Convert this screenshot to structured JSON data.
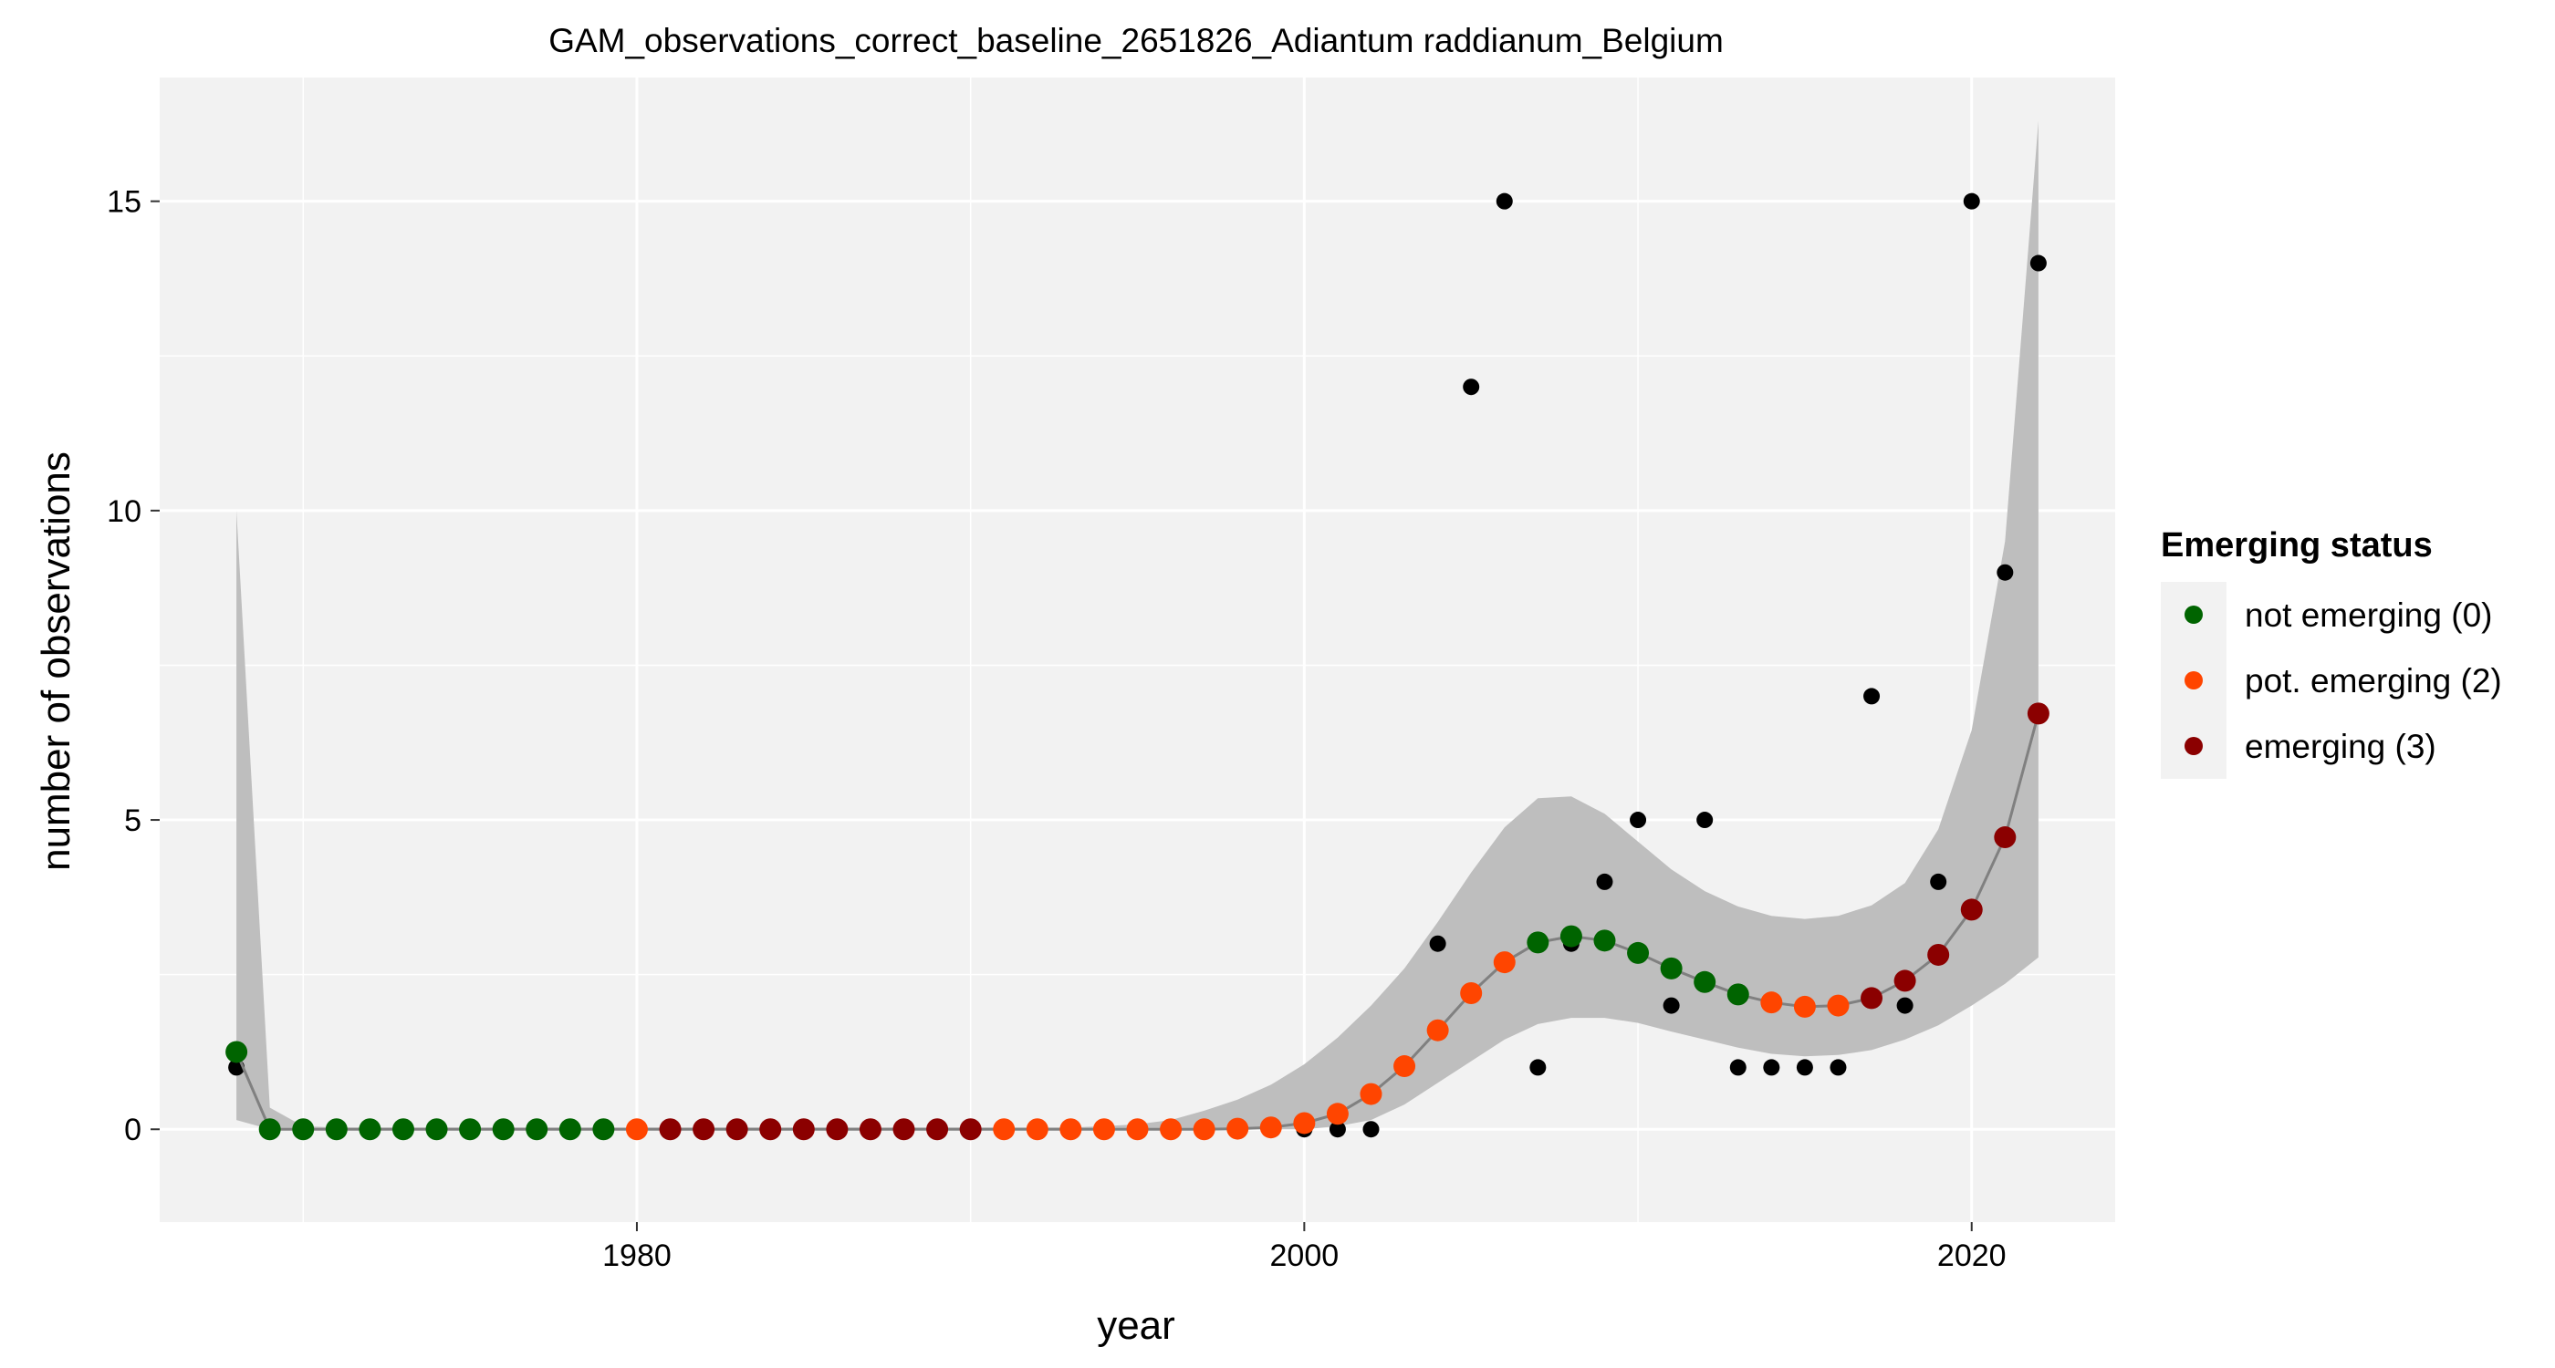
{
  "chart_data": {
    "type": "scatter",
    "title": "GAM_observations_correct_baseline_2651826_Adiantum raddianum_Belgium",
    "xlabel": "year",
    "ylabel": "number of observations",
    "xlim": [
      1965.7,
      2024.3
    ],
    "ylim": [
      -1.5,
      17.0
    ],
    "x_ticks": [
      1980,
      2000,
      2020
    ],
    "y_ticks": [
      0,
      5,
      10,
      15
    ],
    "x_minor_ticks": [
      1970,
      1990,
      2010
    ],
    "y_minor_ticks": [
      2.5,
      7.5,
      12.5
    ],
    "grid": true,
    "legend": {
      "title": "Emerging status",
      "position": "right",
      "entries": [
        {
          "key": "0",
          "label": "not emerging (0)",
          "color": "#006400"
        },
        {
          "key": "2",
          "label": "pot. emerging (2)",
          "color": "#FF4500"
        },
        {
          "key": "3",
          "label": "emerging (3)",
          "color": "#8B0000"
        }
      ]
    },
    "colors": {
      "panel": "#F2F2F2",
      "grid": "#FFFFFF",
      "band": "#BEBEBE",
      "line": "#808080",
      "observed": "#000000"
    },
    "observed": [
      [
        1968,
        1
      ],
      [
        1969,
        0
      ],
      [
        1970,
        0
      ],
      [
        1971,
        0
      ],
      [
        1972,
        0
      ],
      [
        1973,
        0
      ],
      [
        1974,
        0
      ],
      [
        1975,
        0
      ],
      [
        1976,
        0
      ],
      [
        1977,
        0
      ],
      [
        1978,
        0
      ],
      [
        1979,
        0
      ],
      [
        1980,
        0
      ],
      [
        1981,
        0
      ],
      [
        1982,
        0
      ],
      [
        1983,
        0
      ],
      [
        1984,
        0
      ],
      [
        1985,
        0
      ],
      [
        1986,
        0
      ],
      [
        1987,
        0
      ],
      [
        1988,
        0
      ],
      [
        1989,
        0
      ],
      [
        1990,
        0
      ],
      [
        1991,
        0
      ],
      [
        1992,
        0
      ],
      [
        1993,
        0
      ],
      [
        1994,
        0
      ],
      [
        1995,
        0
      ],
      [
        1996,
        0
      ],
      [
        1997,
        0
      ],
      [
        1998,
        0
      ],
      [
        1999,
        0
      ],
      [
        2000,
        0
      ],
      [
        2001,
        0
      ],
      [
        2002,
        0
      ],
      [
        2004,
        3
      ],
      [
        2005,
        12
      ],
      [
        2006,
        15
      ],
      [
        2007,
        1
      ],
      [
        2008,
        3
      ],
      [
        2009,
        4
      ],
      [
        2010,
        5
      ],
      [
        2011,
        2
      ],
      [
        2012,
        5
      ],
      [
        2013,
        1
      ],
      [
        2014,
        1
      ],
      [
        2015,
        1
      ],
      [
        2016,
        1
      ],
      [
        2017,
        7
      ],
      [
        2018,
        2
      ],
      [
        2019,
        4
      ],
      [
        2020,
        15
      ],
      [
        2021,
        9
      ],
      [
        2022,
        14
      ]
    ],
    "fit": {
      "x": [
        1968,
        1969,
        1970,
        1971,
        1972,
        1973,
        1974,
        1975,
        1976,
        1977,
        1978,
        1979,
        1980,
        1981,
        1982,
        1983,
        1984,
        1985,
        1986,
        1987,
        1988,
        1989,
        1990,
        1991,
        1992,
        1993,
        1994,
        1995,
        1996,
        1997,
        1998,
        1999,
        2000,
        2001,
        2002,
        2003,
        2004,
        2005,
        2006,
        2007,
        2008,
        2009,
        2010,
        2011,
        2012,
        2013,
        2014,
        2015,
        2016,
        2017,
        2018,
        2019,
        2020,
        2021,
        2022
      ],
      "y": [
        1.25,
        0,
        0,
        0,
        0,
        0,
        0,
        0,
        0,
        0,
        0,
        0,
        0,
        0,
        0,
        0,
        0,
        0,
        0,
        0,
        0,
        0,
        0,
        0,
        0,
        0,
        0,
        0,
        0,
        0,
        0.01,
        0.03,
        0.1,
        0.25,
        0.57,
        1.02,
        1.6,
        2.2,
        2.7,
        3.02,
        3.12,
        3.05,
        2.85,
        2.6,
        2.38,
        2.18,
        2.05,
        1.98,
        2.0,
        2.12,
        2.4,
        2.82,
        3.55,
        4.72,
        6.72
      ],
      "lower": [
        0.15,
        0,
        0,
        0,
        0,
        0,
        0,
        0,
        0,
        0,
        0,
        0,
        0,
        0,
        0,
        0,
        0,
        0,
        0,
        0,
        0,
        0,
        0,
        0,
        0,
        0,
        0,
        0,
        0,
        0,
        0,
        0,
        0,
        0.05,
        0.15,
        0.4,
        0.75,
        1.1,
        1.45,
        1.7,
        1.8,
        1.8,
        1.72,
        1.58,
        1.45,
        1.32,
        1.22,
        1.18,
        1.2,
        1.28,
        1.45,
        1.68,
        2.0,
        2.35,
        2.78
      ],
      "upper": [
        10.0,
        0.35,
        0.05,
        0.03,
        0.03,
        0.03,
        0.03,
        0.03,
        0.03,
        0.03,
        0.03,
        0.03,
        0.03,
        0.03,
        0.03,
        0.03,
        0.03,
        0.03,
        0.03,
        0.03,
        0.03,
        0.03,
        0.03,
        0.03,
        0.03,
        0.03,
        0.05,
        0.08,
        0.15,
        0.3,
        0.48,
        0.72,
        1.05,
        1.48,
        2.0,
        2.6,
        3.35,
        4.15,
        4.88,
        5.35,
        5.38,
        5.1,
        4.65,
        4.2,
        3.85,
        3.6,
        3.45,
        3.4,
        3.45,
        3.62,
        3.98,
        4.85,
        6.45,
        9.5,
        16.3
      ],
      "status": [
        0,
        0,
        0,
        0,
        0,
        0,
        0,
        0,
        0,
        0,
        0,
        0,
        2,
        3,
        3,
        3,
        3,
        3,
        3,
        3,
        3,
        3,
        3,
        2,
        2,
        2,
        2,
        2,
        2,
        2,
        2,
        2,
        2,
        2,
        2,
        2,
        2,
        2,
        2,
        0,
        0,
        0,
        0,
        0,
        0,
        0,
        2,
        2,
        2,
        3,
        3,
        3,
        3,
        3,
        3
      ]
    }
  }
}
